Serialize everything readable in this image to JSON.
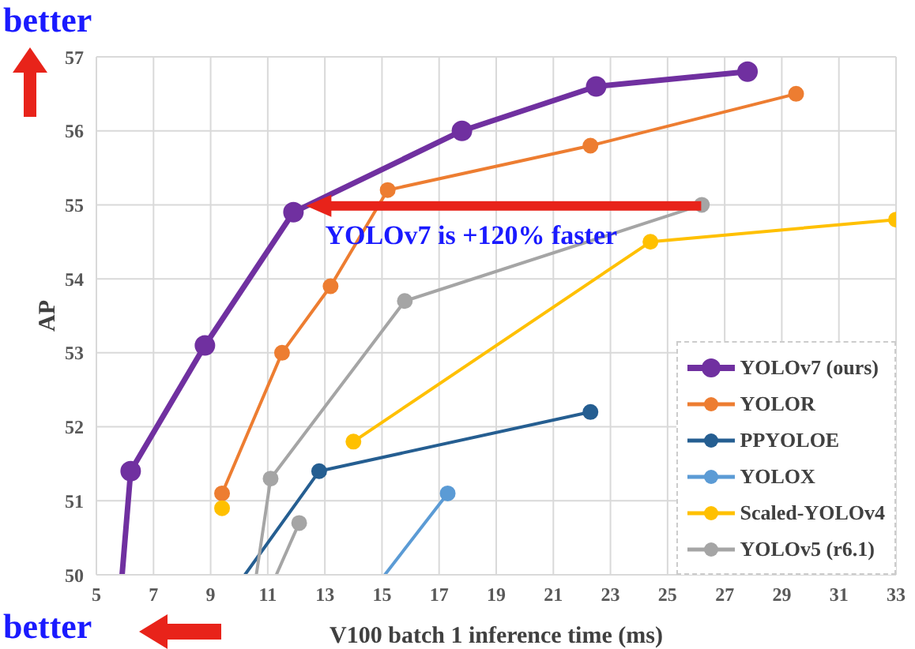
{
  "chart_data": {
    "type": "line",
    "xlabel": "V100 batch 1 inference time (ms)",
    "ylabel": "AP",
    "xlim": [
      5,
      33
    ],
    "xticks": [
      5,
      7,
      9,
      11,
      13,
      15,
      17,
      19,
      21,
      23,
      25,
      27,
      29,
      31,
      33
    ],
    "ylim": [
      50,
      57
    ],
    "yticks": [
      50,
      51,
      52,
      53,
      54,
      55,
      56,
      57
    ],
    "grid": true,
    "legend": "bottom right",
    "marker": "circle",
    "line_style": "solid",
    "annotations": [
      "better",
      "better",
      {
        "text": "YOLOv7 is +120% faster",
        "x": 11.9,
        "y": 54.9
      }
    ],
    "series": [
      {
        "name": "YOLOv7 (ours)",
        "color": "#7030a0",
        "x": [
          5.9,
          6.2,
          8.8,
          11.9,
          17.8,
          22.5,
          27.8
        ],
        "values": [
          50,
          51.4,
          53.1,
          54.9,
          56.0,
          56.6,
          56.8
        ]
      },
      {
        "name": "YOLOR",
        "color": "#ed7d31",
        "x": [
          9.4,
          11.5,
          13.2,
          15.2,
          22.3,
          29.5
        ],
        "values": [
          51.1,
          53.0,
          53.9,
          55.2,
          55.8,
          56.5
        ]
      },
      {
        "name": "PPYOLOE",
        "color": "#255e91",
        "x": [
          10.2,
          12.8,
          22.3
        ],
        "values": [
          50,
          51.4,
          52.2
        ]
      },
      {
        "name": "YOLOX",
        "color": "#5b9bd5",
        "x": [
          15.1,
          17.3
        ],
        "values": [
          50,
          51.1
        ]
      },
      {
        "name": "Scaled-YOLOv4",
        "color": "#ffc000",
        "x": [
          9.4,
          11.7,
          14.0,
          24.4,
          33
        ],
        "values": [
          50.9,
          null,
          51.8,
          54.5,
          54.8
        ]
      },
      {
        "name": "YOLOv5 (r6.1)",
        "color": "#a5a5a5",
        "x": [
          10.6,
          11.1,
          15.8,
          26.2
        ],
        "values": [
          50,
          51.3,
          53.7,
          55.0
        ]
      },
      {
        "color": "#a5a5a5",
        "x": [
          11.3,
          12.1
        ],
        "values": [
          50,
          50.7
        ]
      }
    ]
  }
}
